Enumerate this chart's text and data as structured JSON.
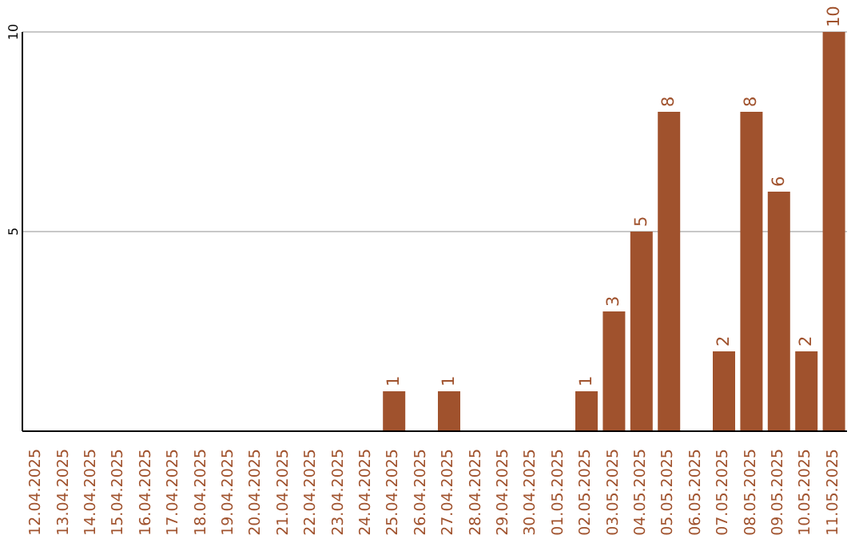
{
  "chart_data": {
    "type": "bar",
    "categories": [
      "12.04.2025",
      "13.04.2025",
      "14.04.2025",
      "15.04.2025",
      "16.04.2025",
      "17.04.2025",
      "18.04.2025",
      "19.04.2025",
      "20.04.2025",
      "21.04.2025",
      "22.04.2025",
      "23.04.2025",
      "24.04.2025",
      "25.04.2025",
      "26.04.2025",
      "27.04.2025",
      "28.04.2025",
      "29.04.2025",
      "30.04.2025",
      "01.05.2025",
      "02.05.2025",
      "03.05.2025",
      "04.05.2025",
      "05.05.2025",
      "06.05.2025",
      "07.05.2025",
      "08.05.2025",
      "09.05.2025",
      "10.05.2025",
      "11.05.2025"
    ],
    "values": [
      0,
      0,
      0,
      0,
      0,
      0,
      0,
      0,
      0,
      0,
      0,
      0,
      0,
      1,
      0,
      1,
      0,
      0,
      0,
      0,
      1,
      3,
      5,
      8,
      0,
      2,
      8,
      6,
      2,
      10
    ],
    "value_labels": [
      null,
      null,
      null,
      null,
      null,
      null,
      null,
      null,
      null,
      null,
      null,
      null,
      null,
      "1",
      null,
      "1",
      null,
      null,
      null,
      null,
      "1",
      "3",
      "5",
      "8",
      null,
      "2",
      "8",
      "6",
      "2",
      "10"
    ],
    "color": "#a0522d",
    "ylim": [
      0,
      10
    ],
    "yticks": [
      5,
      10
    ],
    "grid": "y"
  }
}
